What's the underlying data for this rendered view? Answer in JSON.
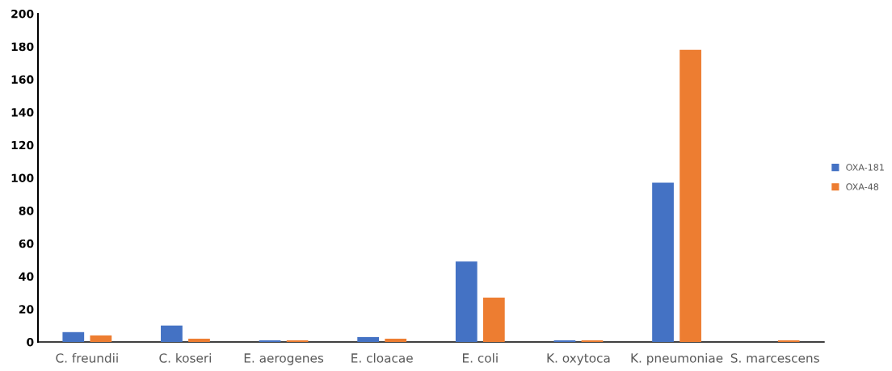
{
  "chart_data": {
    "type": "bar",
    "categories": [
      "C. freundii",
      "C. koseri",
      "E. aerogenes",
      "E. cloacae",
      "E. coli",
      "K. oxytoca",
      "K. pneumoniae",
      "S. marcescens"
    ],
    "series": [
      {
        "name": "OXA-181",
        "color": "#4472c4",
        "values": [
          6,
          10,
          1,
          3,
          49,
          1,
          97,
          0
        ]
      },
      {
        "name": "OXA-48",
        "color": "#ed7d31",
        "values": [
          4,
          2,
          1,
          2,
          27,
          1,
          178,
          1
        ]
      }
    ],
    "ylim": [
      0,
      200
    ],
    "yticks": [
      0,
      20,
      40,
      60,
      80,
      100,
      120,
      140,
      160,
      180,
      200
    ],
    "grid": false,
    "legend": "right"
  }
}
